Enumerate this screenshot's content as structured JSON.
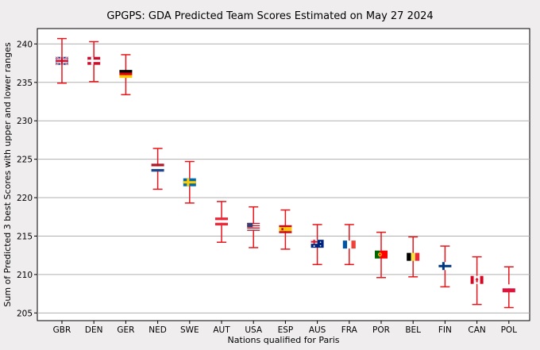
{
  "chart_data": {
    "type": "scatter",
    "title": "GPGPS: GDA Predicted Team Scores Estimated on May 27 2024",
    "xlabel": "Nations qualified for Paris",
    "ylabel": "Sum of Predicted 3 best Scores with upper and lower ranges",
    "ylim": [
      204,
      242
    ],
    "yticks": [
      205,
      210,
      215,
      220,
      225,
      230,
      235,
      240
    ],
    "grid": "horizontal",
    "error_bar_color": "#e8141b",
    "categories": [
      "GBR",
      "DEN",
      "GER",
      "NED",
      "SWE",
      "AUT",
      "USA",
      "ESP",
      "AUS",
      "FRA",
      "POR",
      "BEL",
      "FIN",
      "CAN",
      "POL"
    ],
    "series": [
      {
        "values": [
          237.8,
          237.8,
          236.1,
          223.9,
          222.0,
          216.9,
          216.2,
          215.9,
          214.0,
          213.9,
          212.6,
          212.3,
          211.1,
          209.3,
          208.2
        ],
        "upper": [
          240.7,
          240.3,
          238.6,
          226.4,
          224.7,
          219.5,
          218.8,
          218.4,
          216.5,
          216.5,
          215.5,
          214.9,
          213.7,
          212.3,
          211.0
        ],
        "lower": [
          234.9,
          235.1,
          233.4,
          221.1,
          219.3,
          214.2,
          213.5,
          213.3,
          211.3,
          211.3,
          209.6,
          209.7,
          208.4,
          206.1,
          205.7
        ]
      }
    ],
    "markers": [
      "gbr-flag",
      "den-flag",
      "ger-flag",
      "ned-flag",
      "swe-flag",
      "aut-flag",
      "usa-flag",
      "esp-flag",
      "aus-flag",
      "fra-flag",
      "por-flag",
      "bel-flag",
      "fin-flag",
      "can-flag",
      "pol-flag"
    ]
  }
}
